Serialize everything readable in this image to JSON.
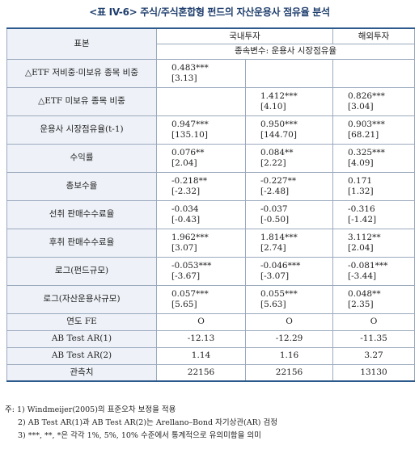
{
  "title": "<표 IV-6> 주식/주식혼합형 펀드의 자산운용사 점유율 분석",
  "header": {
    "sample_label": "표본",
    "domestic": "국내투자",
    "overseas": "해외투자",
    "dependent": "종속변수: 운용사 시장점유율"
  },
  "rows": [
    {
      "label": "△ETF 저비중·미보유 종목 비중",
      "d1": [
        "0.483***",
        "[3.13]"
      ],
      "d2": [
        "",
        ""
      ],
      "o": [
        "",
        ""
      ]
    },
    {
      "label": "△ETF 미보유 종목 비중",
      "d1": [
        "",
        ""
      ],
      "d2": [
        "1.412***",
        "[4.10]"
      ],
      "o": [
        "0.826***",
        "[3.04]"
      ]
    },
    {
      "label": "운용사 시장점유율(t-1)",
      "d1": [
        "0.947***",
        "[135.10]"
      ],
      "d2": [
        "0.950***",
        "[144.70]"
      ],
      "o": [
        "0.903***",
        "[68.21]"
      ]
    },
    {
      "label": "수익률",
      "d1": [
        "0.076**",
        "[2.04]"
      ],
      "d2": [
        "0.084**",
        "[2.22]"
      ],
      "o": [
        "0.325***",
        "[4.09]"
      ]
    },
    {
      "label": "총보수율",
      "d1": [
        "-0.218**",
        "[-2.32]"
      ],
      "d2": [
        "-0.227**",
        "[-2.48]"
      ],
      "o": [
        "0.171",
        "[1.32]"
      ]
    },
    {
      "label": "선취 판매수수료율",
      "d1": [
        "-0.034",
        "[-0.43]"
      ],
      "d2": [
        "-0.037",
        "[-0.50]"
      ],
      "o": [
        "-0.316",
        "[-1.42]"
      ]
    },
    {
      "label": "후취 판매수수료율",
      "d1": [
        "1.962***",
        "[3.07]"
      ],
      "d2": [
        "1.814***",
        "[2.74]"
      ],
      "o": [
        "3.112**",
        "[2.04]"
      ]
    },
    {
      "label": "로그(펀드규모)",
      "d1": [
        "-0.053***",
        "[-3.67]"
      ],
      "d2": [
        "-0.046***",
        "[-3.07]"
      ],
      "o": [
        "-0.081***",
        "[-3.44]"
      ]
    },
    {
      "label": "로그(자산운용사규모)",
      "d1": [
        "0.057***",
        "[5.65]"
      ],
      "d2": [
        "0.055***",
        "[5.63]"
      ],
      "o": [
        "0.048**",
        "[2.35]"
      ]
    }
  ],
  "single_rows": [
    {
      "label": "연도 FE",
      "d1": "O",
      "d2": "O",
      "o": "O"
    },
    {
      "label": "AB Test AR(1)",
      "d1": "-12.13",
      "d2": "-12.29",
      "o": "-11.35"
    },
    {
      "label": "AB Test AR(2)",
      "d1": "1.14",
      "d2": "1.16",
      "o": "3.27"
    },
    {
      "label": "관측치",
      "d1": "22156",
      "d2": "22156",
      "o": "13130"
    }
  ],
  "notes": [
    "주: 1) Windmeijer(2005)의 표준오차 보정을 적용",
    "2) AB Test AR(1)과 AB Test AR(2)는 Arellano–Bond 자기상관(AR) 검정",
    "3) ***, **, *은 각각 1%, 5%, 10% 수준에서 통계적으로 유의미함을 의미"
  ]
}
